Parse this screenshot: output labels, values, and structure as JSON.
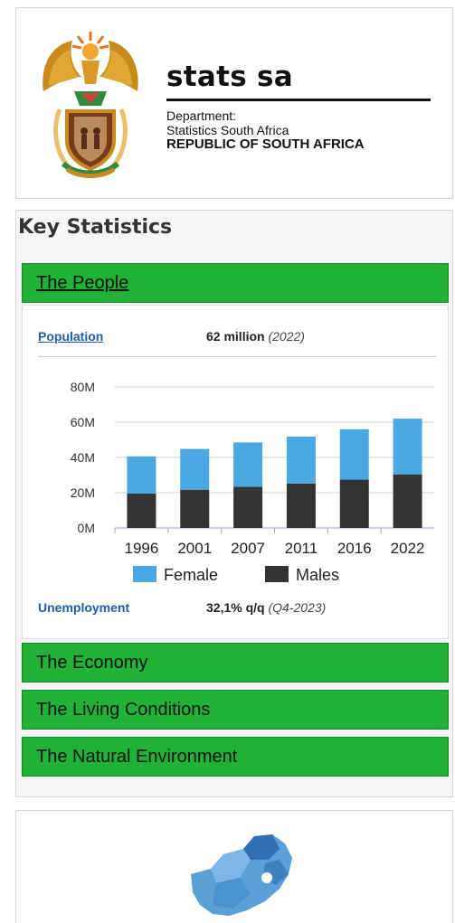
{
  "header": {
    "brand_name": "stats sa",
    "dept_label": "Department:",
    "dept_name": "Statistics South Africa",
    "country": "REPUBLIC OF SOUTH AFRICA"
  },
  "key_stats": {
    "title": "Key Statistics",
    "sections": [
      {
        "label": "The People"
      },
      {
        "label": "The Economy"
      },
      {
        "label": "The Living Conditions"
      },
      {
        "label": "The Natural Environment"
      }
    ],
    "population": {
      "label": "Population",
      "value": "62 million",
      "period": "(2022)"
    },
    "unemployment": {
      "label": "Unemployment",
      "value": "32,1% q/q",
      "period": "(Q4-2023)"
    }
  },
  "colors": {
    "green": "#1fb236",
    "female": "#4aa8e3",
    "males": "#333333",
    "link": "#1f5bb3"
  },
  "chart_data": {
    "type": "bar",
    "stacked": true,
    "categories": [
      "1996",
      "2001",
      "2007",
      "2011",
      "2016",
      "2022"
    ],
    "series": [
      {
        "name": "Males",
        "values": [
          19.5,
          21.7,
          23.4,
          25.2,
          27.4,
          30.4
        ],
        "color": "#333333"
      },
      {
        "name": "Female",
        "values": [
          21.1,
          23.1,
          25.1,
          26.6,
          28.6,
          31.6
        ],
        "color": "#4aa8e3"
      }
    ],
    "y_ticks": [
      "0M",
      "20M",
      "40M",
      "60M",
      "80M"
    ],
    "ylim": [
      0,
      80
    ],
    "legend": [
      "Female",
      "Males"
    ],
    "legend_position": "bottom",
    "grid": true
  }
}
